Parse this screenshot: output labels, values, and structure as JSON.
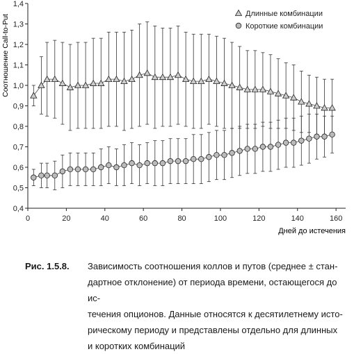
{
  "chart_data": {
    "type": "scatter",
    "ylabel": "Соотношение Call-to-Put",
    "xlabel": "Дней до истечения",
    "xlim": [
      0,
      165
    ],
    "ylim": [
      0.4,
      1.4
    ],
    "x_ticks": [
      "0",
      "20",
      "40",
      "60",
      "80",
      "100",
      "120",
      "140",
      "160"
    ],
    "y_ticks": [
      "0,4",
      "0,5",
      "0,6",
      "0,7",
      "0,8",
      "0,9",
      "1,0",
      "1,1",
      "1,2",
      "1,3",
      "1,4"
    ],
    "legend_position": "top-right",
    "grid": false,
    "error_bars": "± standard deviation",
    "series": [
      {
        "name": "Длинные комбинации",
        "marker": "triangle",
        "color": "#cccccc",
        "points": [
          [
            3,
            0.95
          ],
          [
            7,
            1.0
          ],
          [
            10,
            1.03
          ],
          [
            14,
            1.03
          ],
          [
            18,
            1.01
          ],
          [
            22,
            0.99
          ],
          [
            26,
            1.0
          ],
          [
            30,
            1.0
          ],
          [
            34,
            1.01
          ],
          [
            38,
            1.01
          ],
          [
            42,
            1.03
          ],
          [
            46,
            1.03
          ],
          [
            50,
            1.02
          ],
          [
            54,
            1.03
          ],
          [
            58,
            1.05
          ],
          [
            62,
            1.06
          ],
          [
            66,
            1.04
          ],
          [
            70,
            1.04
          ],
          [
            74,
            1.04
          ],
          [
            78,
            1.05
          ],
          [
            82,
            1.03
          ],
          [
            86,
            1.02
          ],
          [
            90,
            1.02
          ],
          [
            94,
            1.03
          ],
          [
            98,
            1.02
          ],
          [
            102,
            1.01
          ],
          [
            106,
            1.0
          ],
          [
            110,
            0.99
          ],
          [
            114,
            0.98
          ],
          [
            118,
            0.98
          ],
          [
            122,
            0.98
          ],
          [
            126,
            0.97
          ],
          [
            130,
            0.96
          ],
          [
            134,
            0.95
          ],
          [
            138,
            0.94
          ],
          [
            142,
            0.92
          ],
          [
            146,
            0.91
          ],
          [
            150,
            0.9
          ],
          [
            154,
            0.89
          ],
          [
            158,
            0.89
          ]
        ],
        "sd": [
          0.05,
          0.14,
          0.18,
          0.19,
          0.2,
          0.21,
          0.21,
          0.21,
          0.22,
          0.22,
          0.23,
          0.23,
          0.24,
          0.24,
          0.25,
          0.25,
          0.25,
          0.24,
          0.24,
          0.24,
          0.23,
          0.23,
          0.23,
          0.22,
          0.22,
          0.22,
          0.21,
          0.2,
          0.19,
          0.19,
          0.18,
          0.18,
          0.17,
          0.16,
          0.16,
          0.15,
          0.14,
          0.14,
          0.14,
          0.14
        ]
      },
      {
        "name": "Короткие комбинации",
        "marker": "circle",
        "color": "#bbbbbb",
        "points": [
          [
            3,
            0.55
          ],
          [
            7,
            0.56
          ],
          [
            10,
            0.56
          ],
          [
            14,
            0.56
          ],
          [
            18,
            0.58
          ],
          [
            22,
            0.59
          ],
          [
            26,
            0.59
          ],
          [
            30,
            0.59
          ],
          [
            34,
            0.59
          ],
          [
            38,
            0.6
          ],
          [
            42,
            0.61
          ],
          [
            46,
            0.6
          ],
          [
            50,
            0.61
          ],
          [
            54,
            0.62
          ],
          [
            58,
            0.61
          ],
          [
            62,
            0.62
          ],
          [
            66,
            0.62
          ],
          [
            70,
            0.62
          ],
          [
            74,
            0.63
          ],
          [
            78,
            0.63
          ],
          [
            82,
            0.63
          ],
          [
            86,
            0.64
          ],
          [
            90,
            0.64
          ],
          [
            94,
            0.65
          ],
          [
            98,
            0.66
          ],
          [
            102,
            0.66
          ],
          [
            106,
            0.67
          ],
          [
            110,
            0.68
          ],
          [
            114,
            0.69
          ],
          [
            118,
            0.69
          ],
          [
            122,
            0.7
          ],
          [
            126,
            0.7
          ],
          [
            130,
            0.71
          ],
          [
            134,
            0.72
          ],
          [
            138,
            0.72
          ],
          [
            142,
            0.73
          ],
          [
            146,
            0.74
          ],
          [
            150,
            0.75
          ],
          [
            154,
            0.75
          ],
          [
            158,
            0.76
          ]
        ],
        "sd": [
          0.04,
          0.06,
          0.06,
          0.07,
          0.08,
          0.08,
          0.08,
          0.08,
          0.08,
          0.09,
          0.09,
          0.09,
          0.1,
          0.1,
          0.1,
          0.1,
          0.11,
          0.11,
          0.11,
          0.11,
          0.11,
          0.12,
          0.12,
          0.12,
          0.12,
          0.12,
          0.12,
          0.12,
          0.12,
          0.12,
          0.12,
          0.12,
          0.12,
          0.12,
          0.12,
          0.12,
          0.12,
          0.11,
          0.1,
          0.09
        ]
      }
    ]
  },
  "caption": {
    "label": "Рис. 1.5.8.",
    "lines": [
      "Зависимость соотношения коллов и путов (среднее ± стан-",
      "дартное отклонение) от периода времени, остающегося до ис-",
      "течения опционов. Данные относятся к десятилетнему исто-",
      "рическому периоду и представлены отдельно для длинных",
      "и коротких комбинаций"
    ]
  }
}
